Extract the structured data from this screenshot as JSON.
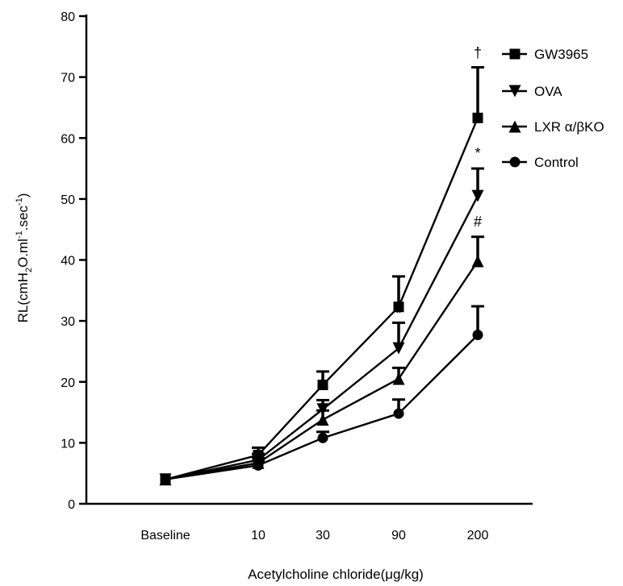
{
  "chart_data": {
    "type": "line",
    "title": "",
    "xlabel": "Acetylcholine chloride(μg/kg)",
    "ylabel": "RL(cmH2O.ml-1.sec-1)",
    "ylabel_parts": {
      "pre": "RL(cmH",
      "sub": "2",
      "mid": "O.ml",
      "sup1": "-1",
      "mid2": ".sec",
      "sup2": "-1",
      "post": ")"
    },
    "categories": [
      "Baseline",
      "10",
      "30",
      "90",
      "200"
    ],
    "ylim": [
      0,
      80
    ],
    "yticks": [
      0,
      10,
      20,
      30,
      40,
      50,
      60,
      70,
      80
    ],
    "grid": false,
    "legend_position": "top-right",
    "series": [
      {
        "name": "GW3965",
        "marker": "square",
        "values": [
          4,
          8,
          19.5,
          32.3,
          63.3
        ],
        "err": [
          0,
          1.2,
          2.2,
          5.0,
          8.3
        ]
      },
      {
        "name": "OVA",
        "marker": "triangle-down",
        "values": [
          4,
          7.2,
          15.5,
          25.5,
          50.5
        ],
        "err": [
          0,
          1.0,
          1.5,
          4.2,
          4.5
        ]
      },
      {
        "name": "LXR α/βKO",
        "marker": "triangle-up",
        "values": [
          4,
          6.7,
          13.8,
          20.5,
          39.8
        ],
        "err": [
          0,
          0.8,
          1.5,
          1.8,
          4.0
        ]
      },
      {
        "name": "Control",
        "marker": "circle",
        "values": [
          4,
          6.3,
          10.8,
          14.8,
          27.7
        ],
        "err": [
          0,
          0.7,
          1.0,
          2.3,
          4.7
        ]
      }
    ],
    "annotations": [
      {
        "text": "†",
        "category": "200",
        "value": 74
      },
      {
        "text": "*",
        "category": "200",
        "value": 57.5
      },
      {
        "text": "#",
        "category": "200",
        "value": 46.3
      },
      {
        "text": "*",
        "category": "90",
        "value": 31.2
      }
    ],
    "colors": {
      "line": "#000000",
      "background": "#ffffff"
    }
  }
}
